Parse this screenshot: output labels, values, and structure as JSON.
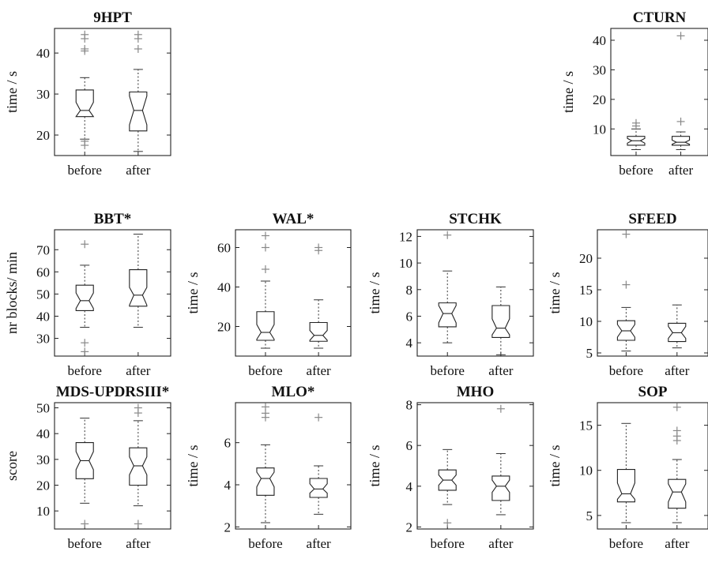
{
  "chart_data": [
    {
      "type": "box",
      "title": "9HPT",
      "ylabel": "time / s",
      "categories": [
        "before",
        "after"
      ],
      "ylim": [
        15,
        46
      ],
      "yticks": [
        20,
        30,
        40
      ],
      "boxes": [
        {
          "category": "before",
          "whisker_low": 19,
          "q1": 24.5,
          "median": 26,
          "q3": 31,
          "whisker_high": 34,
          "notch_low": 24.5,
          "notch_high": 28,
          "outliers": [
            17.5,
            18.5,
            40.5,
            41,
            43.5,
            44.5
          ]
        },
        {
          "category": "after",
          "whisker_low": 16,
          "q1": 21,
          "median": 26,
          "q3": 30.5,
          "whisker_high": 36,
          "notch_low": 22.5,
          "notch_high": 29.5,
          "outliers": [
            41,
            43.5,
            44.5
          ]
        }
      ]
    },
    {
      "type": "box",
      "title": "CTURN",
      "ylabel": "time / s",
      "categories": [
        "before",
        "after"
      ],
      "ylim": [
        1,
        44
      ],
      "yticks": [
        10,
        20,
        30,
        40
      ],
      "boxes": [
        {
          "category": "before",
          "whisker_low": 3,
          "q1": 4.5,
          "median": 6,
          "q3": 7.5,
          "whisker_high": 10,
          "notch_low": 5.2,
          "notch_high": 6.8,
          "outliers": [
            11,
            12
          ]
        },
        {
          "category": "after",
          "whisker_low": 3,
          "q1": 4.5,
          "median": 5.5,
          "q3": 7.5,
          "whisker_high": 9,
          "notch_low": 4.8,
          "notch_high": 6.2,
          "outliers": [
            12.5,
            41.5
          ]
        }
      ]
    },
    {
      "type": "box",
      "title": "BBT*",
      "ylabel": "nr blocks/ min",
      "categories": [
        "before",
        "after"
      ],
      "ylim": [
        22,
        79
      ],
      "yticks": [
        30,
        40,
        50,
        60,
        70
      ],
      "boxes": [
        {
          "category": "before",
          "whisker_low": 35,
          "q1": 42.5,
          "median": 47,
          "q3": 54,
          "whisker_high": 63,
          "notch_low": 43.5,
          "notch_high": 50.5,
          "outliers": [
            24,
            28,
            72.5
          ]
        },
        {
          "category": "after",
          "whisker_low": 35,
          "q1": 44.5,
          "median": 49.5,
          "q3": 61,
          "whisker_high": 77,
          "notch_low": 45,
          "notch_high": 53,
          "outliers": []
        }
      ]
    },
    {
      "type": "box",
      "title": "WAL*",
      "ylabel": "time / s",
      "categories": [
        "before",
        "after"
      ],
      "ylim": [
        5,
        69
      ],
      "yticks": [
        20,
        40,
        60
      ],
      "boxes": [
        {
          "category": "before",
          "whisker_low": 9,
          "q1": 13,
          "median": 17,
          "q3": 27.5,
          "whisker_high": 43,
          "notch_low": 13.5,
          "notch_high": 21,
          "outliers": [
            49,
            60,
            66
          ]
        },
        {
          "category": "after",
          "whisker_low": 9,
          "q1": 12.5,
          "median": 15.5,
          "q3": 22,
          "whisker_high": 33.5,
          "notch_low": 13,
          "notch_high": 18,
          "outliers": [
            58.5,
            60
          ]
        }
      ]
    },
    {
      "type": "box",
      "title": "STCHK",
      "ylabel": "time / s",
      "categories": [
        "before",
        "after"
      ],
      "ylim": [
        3,
        12.5
      ],
      "yticks": [
        4,
        6,
        8,
        10,
        12
      ],
      "boxes": [
        {
          "category": "before",
          "whisker_low": 4,
          "q1": 5.2,
          "median": 6.2,
          "q3": 7,
          "whisker_high": 9.4,
          "notch_low": 5.5,
          "notch_high": 6.8,
          "outliers": [
            12.1
          ]
        },
        {
          "category": "after",
          "whisker_low": 3.1,
          "q1": 4.4,
          "median": 5.1,
          "q3": 6.8,
          "whisker_high": 8.2,
          "notch_low": 4.6,
          "notch_high": 5.8,
          "outliers": []
        }
      ]
    },
    {
      "type": "box",
      "title": "SFEED",
      "ylabel": "time / s",
      "categories": [
        "before",
        "after"
      ],
      "ylim": [
        4.5,
        24.5
      ],
      "yticks": [
        5,
        10,
        15,
        20
      ],
      "boxes": [
        {
          "category": "before",
          "whisker_low": 5.3,
          "q1": 7,
          "median": 8.5,
          "q3": 10.1,
          "whisker_high": 12.2,
          "notch_low": 7.5,
          "notch_high": 9.5,
          "outliers": [
            15.8,
            23.8
          ]
        },
        {
          "category": "after",
          "whisker_low": 5.8,
          "q1": 6.8,
          "median": 8.2,
          "q3": 9.7,
          "whisker_high": 12.6,
          "notch_low": 7.3,
          "notch_high": 9.2,
          "outliers": []
        }
      ]
    },
    {
      "type": "box",
      "title": "MDS-UPDRSIII*",
      "ylabel": "score",
      "categories": [
        "before",
        "after"
      ],
      "ylim": [
        3,
        52
      ],
      "yticks": [
        10,
        20,
        30,
        40,
        50
      ],
      "boxes": [
        {
          "category": "before",
          "whisker_low": 13,
          "q1": 22.5,
          "median": 29.5,
          "q3": 36.5,
          "whisker_high": 46,
          "notch_low": 26,
          "notch_high": 33,
          "outliers": [
            5
          ]
        },
        {
          "category": "after",
          "whisker_low": 12,
          "q1": 20,
          "median": 27.5,
          "q3": 34.5,
          "whisker_high": 45,
          "notch_low": 24,
          "notch_high": 31,
          "outliers": [
            5,
            48,
            50
          ]
        }
      ]
    },
    {
      "type": "box",
      "title": "MLO*",
      "ylabel": "time / s",
      "categories": [
        "before",
        "after"
      ],
      "ylim": [
        1.9,
        7.9
      ],
      "yticks": [
        2,
        4,
        6
      ],
      "boxes": [
        {
          "category": "before",
          "whisker_low": 2.2,
          "q1": 3.5,
          "median": 4.3,
          "q3": 4.8,
          "whisker_high": 5.9,
          "notch_low": 3.9,
          "notch_high": 4.6,
          "outliers": [
            7.2,
            7.4,
            7.7
          ]
        },
        {
          "category": "after",
          "whisker_low": 2.6,
          "q1": 3.4,
          "median": 3.8,
          "q3": 4.3,
          "whisker_high": 4.9,
          "notch_low": 3.6,
          "notch_high": 4.05,
          "outliers": [
            7.2
          ]
        }
      ]
    },
    {
      "type": "box",
      "title": "MHO",
      "ylabel": "time / s",
      "categories": [
        "before",
        "after"
      ],
      "ylim": [
        1.9,
        8.1
      ],
      "yticks": [
        2,
        4,
        6,
        8
      ],
      "boxes": [
        {
          "category": "before",
          "whisker_low": 3.1,
          "q1": 3.8,
          "median": 4.3,
          "q3": 4.8,
          "whisker_high": 5.8,
          "notch_low": 4.05,
          "notch_high": 4.55,
          "outliers": [
            2.2
          ]
        },
        {
          "category": "after",
          "whisker_low": 2.6,
          "q1": 3.3,
          "median": 4,
          "q3": 4.5,
          "whisker_high": 5.6,
          "notch_low": 3.7,
          "notch_high": 4.3,
          "outliers": [
            7.8
          ]
        }
      ]
    },
    {
      "type": "box",
      "title": "SOP",
      "ylabel": "time / s",
      "categories": [
        "before",
        "after"
      ],
      "ylim": [
        3.5,
        17.5
      ],
      "yticks": [
        5,
        10,
        15
      ],
      "boxes": [
        {
          "category": "before",
          "whisker_low": 4.2,
          "q1": 6.5,
          "median": 7.4,
          "q3": 10.1,
          "whisker_high": 15.2,
          "notch_low": 6.8,
          "notch_high": 8.6,
          "outliers": []
        },
        {
          "category": "after",
          "whisker_low": 4.2,
          "q1": 5.8,
          "median": 7.6,
          "q3": 9,
          "whisker_high": 11.2,
          "notch_low": 6.5,
          "notch_high": 8.5,
          "outliers": [
            13.3,
            13.8,
            14.4,
            17
          ]
        }
      ]
    }
  ]
}
